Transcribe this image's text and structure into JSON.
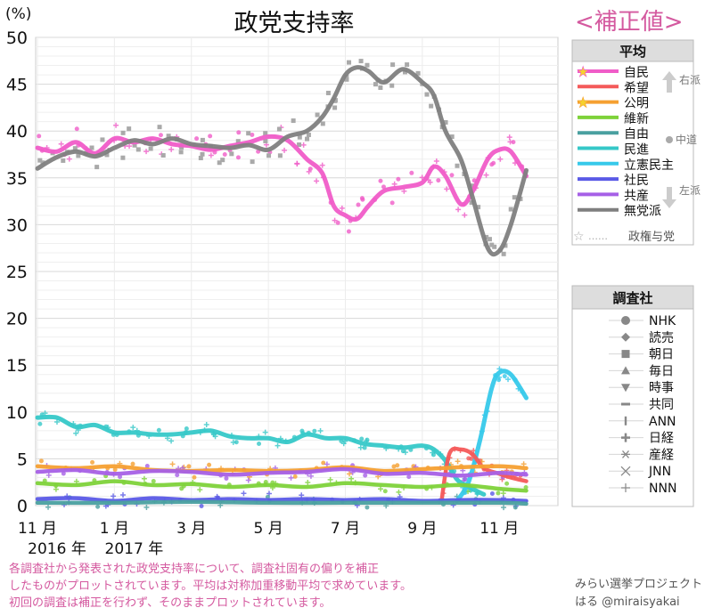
{
  "header": {
    "title": "政党支持率",
    "correction_label": "<補正値>"
  },
  "footnote": "各調査社から発表された政党支持率について、調査社固有の偏りを補正\nしたものがプロットされています。平均は対称加重移動平均で求めています。\n初回の調査は補正を行わず、そのままプロットされています。",
  "credit": "みらい選挙プロジェクト\nはる @miraisyakai",
  "legend_average": {
    "title": "平均",
    "ruling_note": "政権与党",
    "dots": "……",
    "arrows": {
      "right": "右派",
      "center": "中道",
      "left": "左派"
    },
    "items": [
      {
        "label": "自民",
        "color": "#f05cc8",
        "ruling": true
      },
      {
        "label": "希望",
        "color": "#f45a5a",
        "ruling": false
      },
      {
        "label": "公明",
        "color": "#f5a031",
        "ruling": true
      },
      {
        "label": "維新",
        "color": "#7ed23a",
        "ruling": false
      },
      {
        "label": "自由",
        "color": "#4aa0a0",
        "ruling": false
      },
      {
        "label": "民進",
        "color": "#36c8c8",
        "ruling": false
      },
      {
        "label": "立憲民主",
        "color": "#37c9ea",
        "ruling": false
      },
      {
        "label": "社民",
        "color": "#5a5ae6",
        "ruling": false
      },
      {
        "label": "共産",
        "color": "#a660e6",
        "ruling": false
      },
      {
        "label": "無党派",
        "color": "#7f7f7f",
        "ruling": false
      }
    ]
  },
  "legend_pollsters": {
    "title": "調査社",
    "items": [
      {
        "label": "NHK",
        "symbol": "circle"
      },
      {
        "label": "読売",
        "symbol": "diamond"
      },
      {
        "label": "朝日",
        "symbol": "square"
      },
      {
        "label": "毎日",
        "symbol": "triangle-up"
      },
      {
        "label": "時事",
        "symbol": "triangle-down"
      },
      {
        "label": "共同",
        "symbol": "dash"
      },
      {
        "label": "ANN",
        "symbol": "bar"
      },
      {
        "label": "日経",
        "symbol": "plus-bold"
      },
      {
        "label": "産経",
        "symbol": "asterisk"
      },
      {
        "label": "JNN",
        "symbol": "x"
      },
      {
        "label": "NNN",
        "symbol": "plus"
      }
    ]
  },
  "chart_data": {
    "type": "line",
    "ylabel": "(%)",
    "ylim": [
      0,
      50
    ],
    "yticks": [
      0,
      5,
      10,
      15,
      20,
      25,
      30,
      35,
      40,
      45,
      50
    ],
    "xlim": [
      0,
      13.5
    ],
    "xticks": [
      {
        "x": 0,
        "label": "11 月"
      },
      {
        "x": 2,
        "label": "1 月"
      },
      {
        "x": 4,
        "label": "3 月"
      },
      {
        "x": 6,
        "label": "5 月"
      },
      {
        "x": 8,
        "label": "7 月"
      },
      {
        "x": 10,
        "label": "9 月"
      },
      {
        "x": 12,
        "label": "11 月"
      }
    ],
    "year_labels": [
      {
        "x": 0,
        "label": "2016 年"
      },
      {
        "x": 2,
        "label": "2017 年"
      }
    ],
    "grid": true,
    "series": [
      {
        "name": "自民",
        "color": "#f05cc8",
        "points": [
          [
            0,
            38.2
          ],
          [
            0.5,
            37.8
          ],
          [
            1,
            38.8
          ],
          [
            1.5,
            37.6
          ],
          [
            2,
            39.2
          ],
          [
            2.5,
            38.8
          ],
          [
            3,
            39.2
          ],
          [
            3.5,
            38.6
          ],
          [
            4,
            38.4
          ],
          [
            4.5,
            38.0
          ],
          [
            5,
            38.4
          ],
          [
            5.5,
            38.8
          ],
          [
            6,
            39.4
          ],
          [
            6.5,
            39.0
          ],
          [
            7,
            37.0
          ],
          [
            7.4,
            35.5
          ],
          [
            7.7,
            32.0
          ],
          [
            8,
            31.0
          ],
          [
            8.3,
            30.6
          ],
          [
            8.6,
            32.0
          ],
          [
            9,
            33.6
          ],
          [
            9.5,
            34.0
          ],
          [
            10,
            34.5
          ],
          [
            10.3,
            36.2
          ],
          [
            10.6,
            35.2
          ],
          [
            11,
            32.2
          ],
          [
            11.3,
            33.5
          ],
          [
            11.7,
            37.0
          ],
          [
            12,
            38.0
          ],
          [
            12.3,
            37.8
          ],
          [
            12.7,
            35.2
          ]
        ]
      },
      {
        "name": "無党派",
        "color": "#7f7f7f",
        "points": [
          [
            0,
            36.0
          ],
          [
            0.5,
            37.2
          ],
          [
            1,
            37.8
          ],
          [
            1.5,
            37.3
          ],
          [
            2,
            38.2
          ],
          [
            2.5,
            39.0
          ],
          [
            3,
            38.6
          ],
          [
            3.5,
            39.2
          ],
          [
            4,
            38.6
          ],
          [
            4.5,
            38.4
          ],
          [
            5,
            38.2
          ],
          [
            5.5,
            38.5
          ],
          [
            6,
            38.0
          ],
          [
            6.5,
            39.4
          ],
          [
            7,
            40.0
          ],
          [
            7.4,
            41.5
          ],
          [
            7.7,
            43.5
          ],
          [
            8,
            46.0
          ],
          [
            8.3,
            46.8
          ],
          [
            8.6,
            46.4
          ],
          [
            9,
            45.2
          ],
          [
            9.5,
            46.6
          ],
          [
            10,
            45.2
          ],
          [
            10.3,
            43.8
          ],
          [
            10.6,
            40.0
          ],
          [
            11,
            37.0
          ],
          [
            11.3,
            33.0
          ],
          [
            11.7,
            27.5
          ],
          [
            12,
            27.2
          ],
          [
            12.3,
            30.0
          ],
          [
            12.7,
            35.8
          ]
        ]
      },
      {
        "name": "民進",
        "color": "#36c8c8",
        "points": [
          [
            0,
            9.4
          ],
          [
            0.5,
            9.4
          ],
          [
            1,
            8.4
          ],
          [
            1.5,
            8.6
          ],
          [
            2,
            7.8
          ],
          [
            2.5,
            7.8
          ],
          [
            3,
            7.6
          ],
          [
            3.5,
            7.6
          ],
          [
            4,
            7.8
          ],
          [
            4.5,
            8.0
          ],
          [
            5,
            7.4
          ],
          [
            5.5,
            7.2
          ],
          [
            6,
            7.2
          ],
          [
            6.5,
            6.8
          ],
          [
            7,
            7.6
          ],
          [
            7.5,
            7.2
          ],
          [
            8,
            7.2
          ],
          [
            8.5,
            6.6
          ],
          [
            9,
            6.4
          ],
          [
            9.5,
            6.2
          ],
          [
            10,
            6.4
          ],
          [
            10.3,
            6.0
          ],
          [
            10.6,
            4.8
          ],
          [
            10.9,
            2.8
          ],
          [
            11.2,
            2.0
          ],
          [
            11.6,
            1.2
          ]
        ]
      },
      {
        "name": "立憲民主",
        "color": "#37c9ea",
        "points": [
          [
            10.9,
            0.5
          ],
          [
            11.2,
            2.5
          ],
          [
            11.5,
            7.0
          ],
          [
            11.8,
            12.5
          ],
          [
            12.0,
            14.2
          ],
          [
            12.3,
            14.0
          ],
          [
            12.7,
            11.5
          ]
        ]
      },
      {
        "name": "希望",
        "color": "#f45a5a",
        "points": [
          [
            10.5,
            0.5
          ],
          [
            10.7,
            5.5
          ],
          [
            11.0,
            6.0
          ],
          [
            11.3,
            5.5
          ],
          [
            11.6,
            4.0
          ],
          [
            12.0,
            3.4
          ],
          [
            12.3,
            3.0
          ],
          [
            12.7,
            2.6
          ]
        ]
      },
      {
        "name": "公明",
        "color": "#f5a031",
        "points": [
          [
            0,
            4.2
          ],
          [
            1,
            4.0
          ],
          [
            2,
            4.2
          ],
          [
            3,
            3.8
          ],
          [
            4,
            3.7
          ],
          [
            5,
            3.8
          ],
          [
            6,
            3.7
          ],
          [
            7,
            3.8
          ],
          [
            8,
            4.1
          ],
          [
            9,
            3.7
          ],
          [
            10,
            3.9
          ],
          [
            11,
            4.1
          ],
          [
            12,
            4.2
          ],
          [
            12.7,
            4.0
          ]
        ]
      },
      {
        "name": "共産",
        "color": "#a660e6",
        "points": [
          [
            0,
            3.6
          ],
          [
            1,
            3.8
          ],
          [
            2,
            3.4
          ],
          [
            3,
            3.7
          ],
          [
            4,
            3.6
          ],
          [
            5,
            3.3
          ],
          [
            6,
            3.5
          ],
          [
            7,
            3.6
          ],
          [
            8,
            3.9
          ],
          [
            9,
            3.4
          ],
          [
            10,
            3.5
          ],
          [
            11,
            3.2
          ],
          [
            12,
            3.5
          ],
          [
            12.7,
            3.3
          ]
        ]
      },
      {
        "name": "維新",
        "color": "#7ed23a",
        "points": [
          [
            0,
            2.4
          ],
          [
            1,
            2.2
          ],
          [
            2,
            2.6
          ],
          [
            3,
            2.2
          ],
          [
            4,
            2.3
          ],
          [
            5,
            2.0
          ],
          [
            6,
            2.2
          ],
          [
            7,
            2.0
          ],
          [
            8,
            2.4
          ],
          [
            9,
            2.2
          ],
          [
            10,
            2.0
          ],
          [
            11,
            2.2
          ],
          [
            12,
            1.8
          ],
          [
            12.7,
            1.6
          ]
        ]
      },
      {
        "name": "社民",
        "color": "#5a5ae6",
        "points": [
          [
            0,
            0.7
          ],
          [
            1,
            0.8
          ],
          [
            2,
            0.5
          ],
          [
            3,
            0.8
          ],
          [
            4,
            0.6
          ],
          [
            5,
            0.7
          ],
          [
            6,
            0.6
          ],
          [
            7,
            0.7
          ],
          [
            8,
            0.6
          ],
          [
            9,
            0.7
          ],
          [
            10,
            0.5
          ],
          [
            11,
            0.6
          ],
          [
            12,
            0.6
          ],
          [
            12.7,
            0.5
          ]
        ]
      },
      {
        "name": "自由",
        "color": "#4aa0a0",
        "points": [
          [
            0,
            0.3
          ],
          [
            2,
            0.3
          ],
          [
            4,
            0.4
          ],
          [
            6,
            0.3
          ],
          [
            8,
            0.3
          ],
          [
            10,
            0.3
          ],
          [
            12,
            0.3
          ],
          [
            12.7,
            0.2
          ]
        ]
      }
    ]
  }
}
